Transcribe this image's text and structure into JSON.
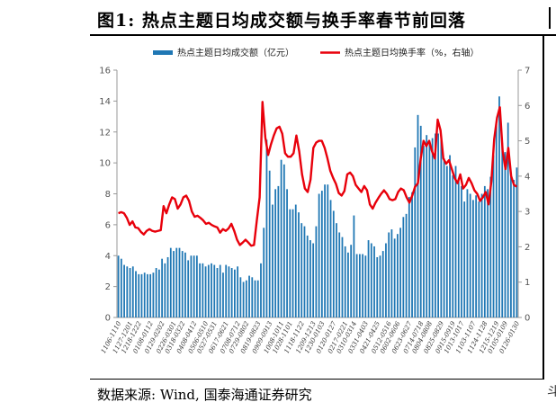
{
  "header": {
    "title": "图1:  热点主题日均成交额与换手率春节前回落"
  },
  "footer": {
    "source": "数据来源:  Wind,  国泰海通证券研究",
    "partial_right": "斗"
  },
  "chart_data": {
    "type": "bar+line",
    "title": "图1: 热点主题日均成交额与换手率春节前回落",
    "left_axis": {
      "label": "热点主题日均成交额（亿元）",
      "ylim": [
        0,
        16
      ],
      "ticks": [
        0,
        2,
        4,
        6,
        8,
        10,
        12,
        14,
        16
      ]
    },
    "right_axis": {
      "label": "热点主题日均换手率（%，右轴）",
      "ylim": [
        0,
        7
      ],
      "ticks": [
        0,
        1,
        2,
        3,
        4,
        5,
        6,
        7
      ]
    },
    "x_tick_labels": [
      "1106-1110",
      "1127-1201",
      "1218-1222",
      "0108-0112",
      "0129-0202",
      "0226-0301",
      "0318-0322",
      "0408-0412",
      "0506-0510",
      "0527-0531",
      "0617-0621",
      "0708-0712",
      "0729-0802",
      "0819-0823",
      "0909-0913",
      "1008-1011",
      "1028-1101",
      "1118-1122",
      "1209-1213",
      "1230-0103",
      "0120-0127",
      "0217-0221",
      "0310-0314",
      "0331-0403",
      "0421-0425",
      "0512-0516",
      "0602-0606",
      "0623-0627",
      "0714-0718",
      "0804-0808",
      "0825-0829",
      "0915-0919",
      "1013-1017",
      "1103-1107",
      "1124-1128",
      "1215-1219",
      "0105-0109",
      "0126-0130"
    ],
    "series": [
      {
        "name": "热点主题日均成交额（亿元）",
        "type": "bar",
        "axis": "left",
        "color": "#1f77b4",
        "values": [
          4.0,
          3.8,
          3.4,
          3.3,
          3.2,
          3.3,
          3.0,
          2.8,
          2.8,
          2.9,
          2.8,
          2.8,
          2.9,
          3.2,
          3.1,
          3.8,
          3.5,
          3.9,
          4.5,
          4.3,
          4.5,
          4.5,
          4.3,
          4.2,
          3.7,
          4.0,
          4.0,
          4.0,
          3.5,
          3.5,
          3.3,
          3.4,
          3.5,
          3.4,
          3.2,
          3.4,
          2.9,
          3.4,
          3.3,
          3.2,
          3.1,
          3.3,
          2.6,
          2.3,
          2.4,
          2.7,
          2.6,
          2.4,
          2.4,
          3.5,
          5.8,
          11.5,
          9.5,
          7.3,
          8.3,
          8.5,
          10.2,
          9.9,
          8.3,
          7.0,
          7.0,
          7.3,
          6.8,
          6.1,
          5.9,
          5.3,
          5.0,
          4.8,
          5.9,
          8.0,
          8.2,
          8.6,
          8.6,
          7.6,
          6.9,
          6.1,
          5.5,
          5.2,
          4.6,
          4.2,
          4.7,
          6.6,
          4.1,
          4.1,
          4.1,
          4.0,
          5.0,
          4.8,
          4.6,
          3.9,
          4.0,
          4.3,
          4.8,
          5.5,
          5.7,
          5.1,
          5.4,
          5.8,
          6.5,
          6.7,
          7.8,
          8.1,
          11.0,
          13.1,
          12.4,
          11.1,
          11.8,
          11.2,
          11.6,
          11.9,
          11.9,
          11.5,
          10.3,
          9.8,
          10.5,
          9.2,
          9.8,
          9.0,
          8.5,
          7.5,
          8.3,
          8.0,
          7.6,
          7.9,
          7.5,
          8.0,
          8.5,
          8.3,
          9.1,
          10.5,
          12.5,
          14.3,
          11.3,
          10.7,
          12.6,
          9.1,
          8.9,
          9.7
        ]
      },
      {
        "name": "热点主题日均换手率（%，右轴）",
        "type": "line",
        "axis": "right",
        "color": "#e8000b",
        "values": [
          2.95,
          2.98,
          2.95,
          2.82,
          2.62,
          2.72,
          2.55,
          2.53,
          2.42,
          2.35,
          2.45,
          2.5,
          2.45,
          2.43,
          2.45,
          2.47,
          3.15,
          2.95,
          3.2,
          3.4,
          3.35,
          3.08,
          3.2,
          3.4,
          3.45,
          3.3,
          3.0,
          2.85,
          2.88,
          2.82,
          2.75,
          2.65,
          2.68,
          2.62,
          2.58,
          2.55,
          2.4,
          2.5,
          2.45,
          2.52,
          2.65,
          2.45,
          2.2,
          2.05,
          2.12,
          2.2,
          2.12,
          2.03,
          2.05,
          2.75,
          3.4,
          6.1,
          5.1,
          4.6,
          4.9,
          5.15,
          5.35,
          5.4,
          5.2,
          4.65,
          4.55,
          4.55,
          4.65,
          5.15,
          4.7,
          4.05,
          3.65,
          3.55,
          3.9,
          4.8,
          4.95,
          5.0,
          5.0,
          4.8,
          4.5,
          4.15,
          3.95,
          3.78,
          3.52,
          3.45,
          3.58,
          4.05,
          4.1,
          4.0,
          3.75,
          3.65,
          3.55,
          3.72,
          3.6,
          3.2,
          3.08,
          3.25,
          3.38,
          3.5,
          3.6,
          3.5,
          3.35,
          3.32,
          3.35,
          3.55,
          3.65,
          3.6,
          3.4,
          3.25,
          3.45,
          3.7,
          3.8,
          4.5,
          5.0,
          4.85,
          5.0,
          4.7,
          4.5,
          5.6,
          5.3,
          4.5,
          4.35,
          4.45,
          4.2,
          3.95,
          3.8,
          4.05,
          3.65,
          3.75,
          3.95,
          3.8,
          3.6,
          3.5,
          3.3,
          3.4,
          3.55,
          3.2,
          3.85,
          5.05,
          5.65,
          5.95,
          4.7,
          4.2,
          4.8,
          4.0,
          3.75,
          3.7
        ]
      }
    ],
    "legend": [
      "热点主题日均成交额（亿元）",
      "热点主题日均换手率（%，右轴）"
    ],
    "legend_position": "top"
  }
}
